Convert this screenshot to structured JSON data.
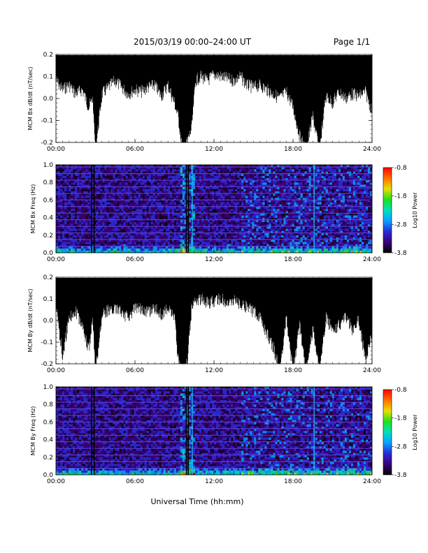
{
  "header": {
    "title": "2015/03/19   00:00–24:00 UT",
    "page": "Page 1/1"
  },
  "footer": {
    "xlabel": "Universal Time (hh:mm)"
  },
  "chart_data": [
    {
      "id": "bx_line",
      "type": "line",
      "ylabel": "MCM Bx dB/dt (nT/sec)",
      "xlim": [
        0,
        24
      ],
      "ylim": [
        -0.2,
        0.2
      ],
      "xticks": [
        "00:00",
        "06:00",
        "12:00",
        "18:00",
        "24:00"
      ],
      "yticks": [
        "0.2",
        "0.1",
        "0.0",
        "-0.1",
        "-0.2"
      ],
      "series": [
        {
          "color": "#000000",
          "x": [
            0,
            0.5,
            1,
            1.5,
            2,
            2.5,
            2.8,
            3,
            3.5,
            4,
            4.5,
            5,
            5.5,
            6,
            6.5,
            7,
            7.5,
            8,
            8.5,
            9,
            9.3,
            9.6,
            9.8,
            10,
            10.3,
            10.6,
            11,
            11.5,
            12,
            12.5,
            13,
            13.5,
            14,
            14.5,
            15,
            15.5,
            16,
            16.5,
            17,
            17.5,
            18,
            18.5,
            19,
            19.5,
            20,
            20.5,
            21,
            21.5,
            22,
            22.5,
            23,
            23.5,
            24
          ],
          "y": [
            0.12,
            0.08,
            0.1,
            0.06,
            0.08,
            0.0,
            0.04,
            -0.2,
            0.06,
            0.09,
            0.12,
            0.09,
            0.06,
            0.08,
            0.07,
            0.09,
            0.1,
            0.05,
            0.1,
            0.02,
            -0.05,
            -0.2,
            -0.2,
            -0.15,
            -0.1,
            0.12,
            0.14,
            0.12,
            0.15,
            0.14,
            0.13,
            0.12,
            0.14,
            0.1,
            0.09,
            0.1,
            0.08,
            0.06,
            0.04,
            0.07,
            0.0,
            -0.13,
            -0.2,
            -0.04,
            -0.2,
            0.05,
            0.02,
            0.07,
            0.04,
            0.06,
            0.05,
            0.07,
            -0.02
          ]
        }
      ]
    },
    {
      "id": "bx_spec",
      "type": "heatmap",
      "ylabel": "MCM Bx Freq (Hz)",
      "xlim": [
        0,
        24
      ],
      "ylim": [
        0,
        1.0
      ],
      "xticks": [
        "00:00",
        "06:00",
        "12:00",
        "18:00",
        "24:00"
      ],
      "yticks": [
        "1.0",
        "0.8",
        "0.6",
        "0.4",
        "0.2",
        "0.0"
      ],
      "colorbar": {
        "label": "Log10 Power",
        "ticks": [
          "-0.8",
          "-1.8",
          "-2.8",
          "-3.8"
        ],
        "range": [
          -3.8,
          -0.8
        ],
        "colors": [
          "#000000",
          "#3a0078",
          "#2a2ad8",
          "#0aa0ff",
          "#00e0c0",
          "#20e020",
          "#e8e000",
          "#ff7000",
          "#ff0000"
        ]
      },
      "harmonic_lines_hz": [
        0.075,
        0.15,
        0.225,
        0.3,
        0.375,
        0.45,
        0.525,
        0.6,
        0.675,
        0.75,
        0.825,
        0.9,
        0.975
      ],
      "vertical_features": [
        {
          "time_h": 2.7,
          "kind": "gap"
        },
        {
          "time_h": 2.9,
          "kind": "gap"
        },
        {
          "time_h": 9.9,
          "kind": "gap"
        },
        {
          "time_h": 10.05,
          "kind": "gap"
        },
        {
          "time_h": 10.35,
          "kind": "broadband"
        },
        {
          "time_h": 19.6,
          "kind": "broadband"
        }
      ]
    },
    {
      "id": "by_line",
      "type": "line",
      "ylabel": "MCM By dB/dt (nT/sec)",
      "xlim": [
        0,
        24
      ],
      "ylim": [
        -0.2,
        0.2
      ],
      "xticks": [
        "00:00",
        "06:00",
        "12:00",
        "18:00",
        "24:00"
      ],
      "yticks": [
        "0.2",
        "0.1",
        "0.0",
        "-0.1",
        "-0.2"
      ],
      "series": [
        {
          "color": "#000000",
          "x": [
            0,
            0.5,
            1,
            1.5,
            2,
            2.5,
            2.8,
            3,
            3.5,
            4,
            4.5,
            5,
            5.5,
            6,
            6.5,
            7,
            7.5,
            8,
            8.5,
            9,
            9.3,
            9.6,
            9.8,
            10,
            10.3,
            10.6,
            11,
            11.5,
            12,
            12.5,
            13,
            13.5,
            14,
            14.5,
            15,
            15.5,
            16,
            16.5,
            17,
            17.5,
            18,
            18.5,
            19,
            19.5,
            20,
            20.5,
            21,
            21.5,
            22,
            22.5,
            23,
            23.5,
            24
          ],
          "y": [
            0.1,
            -0.12,
            0.05,
            0.08,
            0.02,
            -0.1,
            0.05,
            -0.2,
            0.07,
            0.09,
            0.1,
            0.08,
            0.05,
            0.1,
            0.09,
            0.08,
            0.1,
            0.07,
            0.09,
            0.05,
            -0.15,
            -0.2,
            -0.2,
            -0.12,
            0.1,
            0.12,
            0.14,
            0.12,
            0.13,
            0.14,
            0.12,
            0.13,
            0.12,
            0.1,
            0.08,
            0.05,
            -0.02,
            -0.08,
            -0.2,
            0.05,
            -0.2,
            0.02,
            -0.2,
            0.0,
            -0.2,
            0.05,
            0.0,
            0.02,
            0.05,
            0.0,
            0.04,
            -0.15,
            -0.02
          ]
        }
      ]
    },
    {
      "id": "by_spec",
      "type": "heatmap",
      "ylabel": "MCM By Freq (Hz)",
      "xlim": [
        0,
        24
      ],
      "ylim": [
        0,
        1.0
      ],
      "xticks": [
        "00:00",
        "06:00",
        "12:00",
        "18:00",
        "24:00"
      ],
      "yticks": [
        "1.0",
        "0.8",
        "0.6",
        "0.4",
        "0.2",
        "0.0"
      ],
      "colorbar": {
        "label": "Log10 Power",
        "ticks": [
          "-0.8",
          "-1.8",
          "-2.8",
          "-3.8"
        ],
        "range": [
          -3.8,
          -0.8
        ],
        "colors": [
          "#000000",
          "#3a0078",
          "#2a2ad8",
          "#0aa0ff",
          "#00e0c0",
          "#20e020",
          "#e8e000",
          "#ff7000",
          "#ff0000"
        ]
      },
      "harmonic_lines_hz": [
        0.075,
        0.15,
        0.225,
        0.3,
        0.375,
        0.45,
        0.525,
        0.6,
        0.675,
        0.75,
        0.825,
        0.9,
        0.975
      ],
      "vertical_features": [
        {
          "time_h": 2.7,
          "kind": "gap"
        },
        {
          "time_h": 2.9,
          "kind": "gap"
        },
        {
          "time_h": 9.9,
          "kind": "gap"
        },
        {
          "time_h": 10.05,
          "kind": "gap"
        },
        {
          "time_h": 10.35,
          "kind": "broadband"
        },
        {
          "time_h": 19.6,
          "kind": "broadband"
        }
      ]
    }
  ]
}
